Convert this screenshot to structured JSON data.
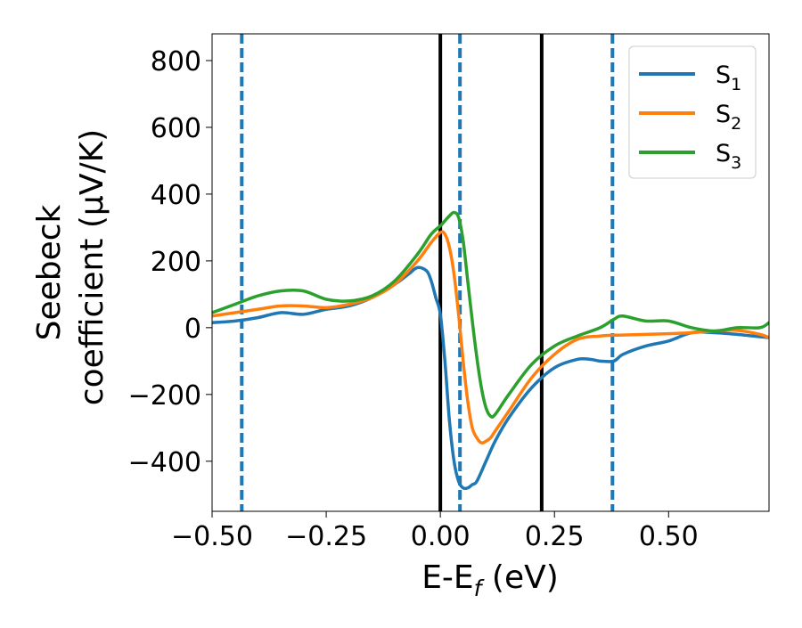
{
  "chart_data": {
    "type": "line",
    "xlabel": {
      "base": "E-E",
      "sub": "f",
      "tail": " (eV)"
    },
    "ylabel": {
      "line1": "Seebeck",
      "line2": "coefficient  (μV/K)"
    },
    "xlim": [
      -0.5,
      0.72
    ],
    "ylim": [
      -550,
      880
    ],
    "xticks": [
      -0.5,
      -0.25,
      0.0,
      0.25,
      0.5
    ],
    "xtick_labels": [
      "−0.50",
      "−0.25",
      "0.00",
      "0.25",
      "0.50"
    ],
    "yticks": [
      -400,
      -200,
      0,
      200,
      400,
      600,
      800
    ],
    "ytick_labels": [
      "−400",
      "−200",
      "0",
      "200",
      "400",
      "600",
      "800"
    ],
    "grid": false,
    "legend_placement": "top-right",
    "series": [
      {
        "name": "S",
        "sub": "1",
        "color": "#1f77b4",
        "x": [
          -0.5,
          -0.45,
          -0.4,
          -0.35,
          -0.3,
          -0.25,
          -0.2,
          -0.15,
          -0.1,
          -0.07,
          -0.05,
          -0.03,
          -0.02,
          -0.01,
          0.0,
          0.01,
          0.02,
          0.03,
          0.04,
          0.05,
          0.06,
          0.07,
          0.08,
          0.1,
          0.12,
          0.15,
          0.2,
          0.25,
          0.3,
          0.33,
          0.35,
          0.38,
          0.4,
          0.45,
          0.5,
          0.55,
          0.6,
          0.65,
          0.72
        ],
        "y": [
          15,
          20,
          30,
          45,
          40,
          55,
          65,
          90,
          130,
          160,
          180,
          170,
          140,
          90,
          40,
          -100,
          -280,
          -400,
          -460,
          -480,
          -480,
          -470,
          -460,
          -400,
          -340,
          -270,
          -180,
          -120,
          -95,
          -95,
          -100,
          -100,
          -80,
          -55,
          -40,
          -15,
          -15,
          -20,
          -30
        ]
      },
      {
        "name": "S",
        "sub": "2",
        "color": "#ff7f0e",
        "x": [
          -0.5,
          -0.45,
          -0.4,
          -0.35,
          -0.3,
          -0.25,
          -0.2,
          -0.15,
          -0.1,
          -0.05,
          -0.02,
          0.0,
          0.01,
          0.02,
          0.03,
          0.04,
          0.05,
          0.06,
          0.07,
          0.08,
          0.09,
          0.1,
          0.11,
          0.12,
          0.15,
          0.2,
          0.25,
          0.3,
          0.35,
          0.4,
          0.45,
          0.5,
          0.55,
          0.6,
          0.65,
          0.7,
          0.72
        ],
        "y": [
          35,
          45,
          55,
          65,
          65,
          60,
          70,
          90,
          130,
          200,
          255,
          285,
          280,
          240,
          160,
          40,
          -100,
          -220,
          -300,
          -330,
          -345,
          -340,
          -330,
          -310,
          -250,
          -150,
          -80,
          -35,
          -25,
          -22,
          -20,
          -18,
          -15,
          -10,
          -8,
          -20,
          -30
        ]
      },
      {
        "name": "S",
        "sub": "3",
        "color": "#2ca02c",
        "x": [
          -0.5,
          -0.45,
          -0.4,
          -0.35,
          -0.3,
          -0.25,
          -0.2,
          -0.15,
          -0.1,
          -0.05,
          -0.02,
          0.0,
          0.01,
          0.02,
          0.03,
          0.04,
          0.05,
          0.06,
          0.07,
          0.08,
          0.09,
          0.1,
          0.11,
          0.12,
          0.15,
          0.2,
          0.25,
          0.3,
          0.35,
          0.38,
          0.4,
          0.45,
          0.5,
          0.55,
          0.6,
          0.65,
          0.7,
          0.72
        ],
        "y": [
          45,
          70,
          95,
          110,
          110,
          85,
          80,
          95,
          140,
          220,
          280,
          305,
          320,
          335,
          345,
          330,
          260,
          140,
          20,
          -90,
          -180,
          -240,
          -265,
          -260,
          -200,
          -110,
          -55,
          -25,
          0,
          25,
          35,
          20,
          20,
          0,
          -10,
          0,
          0,
          15
        ]
      }
    ],
    "vlines": [
      {
        "x": -0.435,
        "style": "dashed",
        "color": "#1f77b4"
      },
      {
        "x": 0.0,
        "style": "solid",
        "color": "#000000"
      },
      {
        "x": 0.043,
        "style": "dashed",
        "color": "#1f77b4"
      },
      {
        "x": 0.222,
        "style": "solid",
        "color": "#000000"
      },
      {
        "x": 0.377,
        "style": "dashed",
        "color": "#1f77b4"
      }
    ]
  }
}
